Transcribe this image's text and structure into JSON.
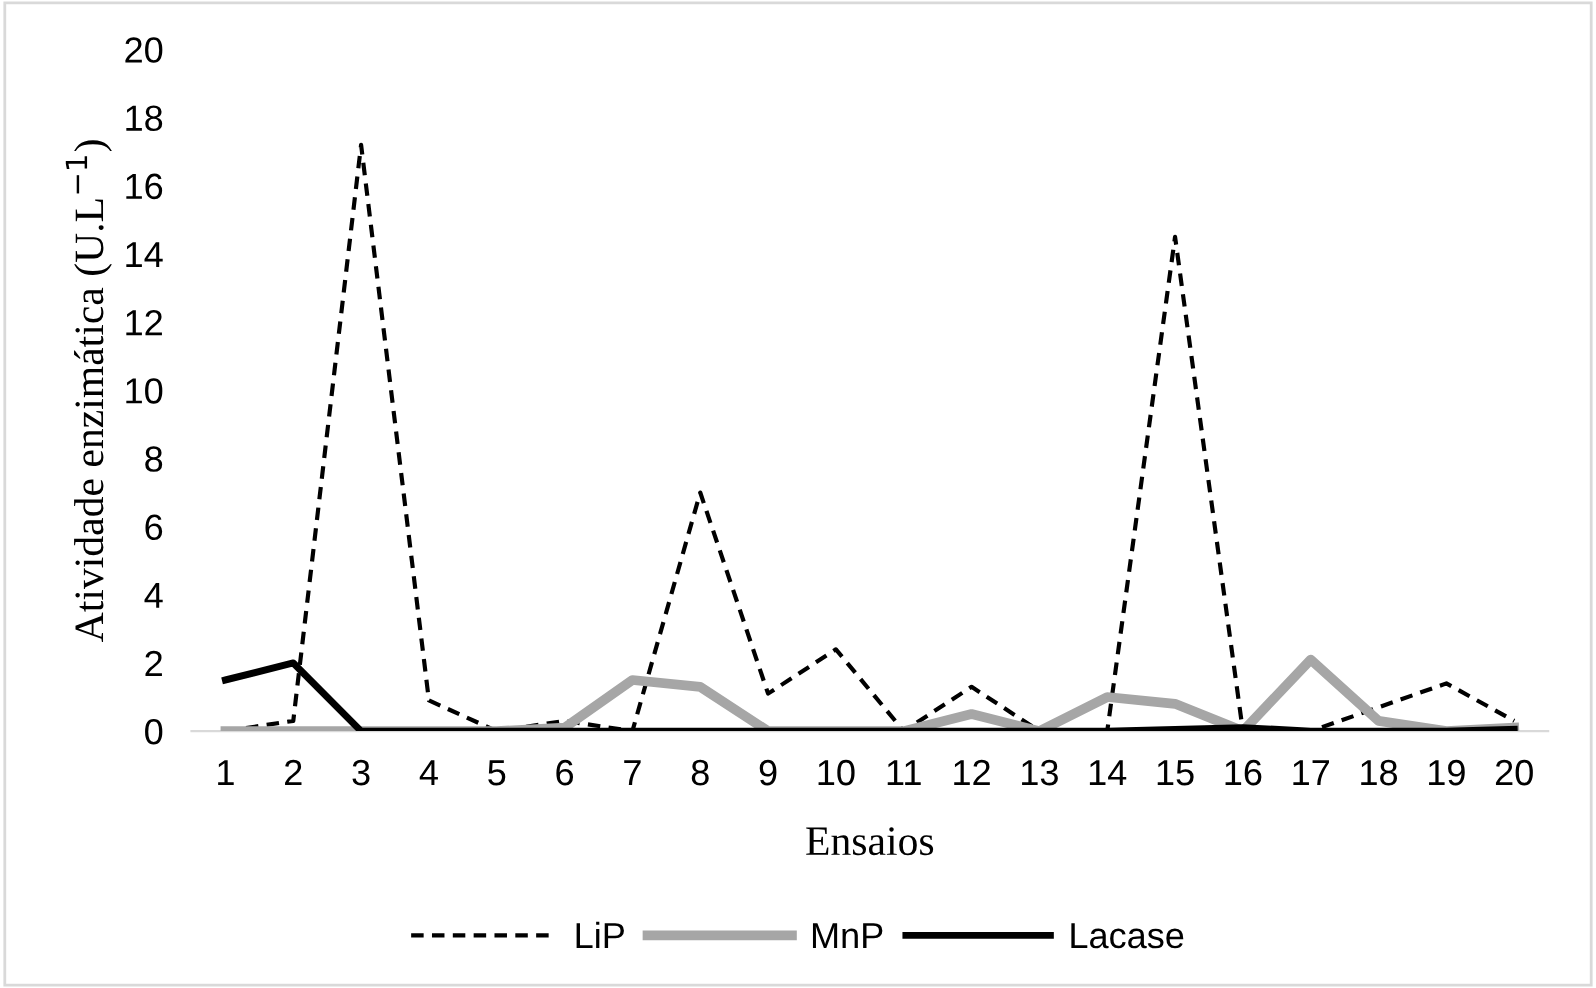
{
  "chart_data": {
    "type": "line",
    "xlabel": "Ensaios",
    "ylabel": "Atividade enzimática (U.L$^{−1}$)",
    "categories": [
      "1",
      "2",
      "3",
      "4",
      "5",
      "6",
      "7",
      "8",
      "9",
      "10",
      "11",
      "12",
      "13",
      "14",
      "15",
      "16",
      "17",
      "18",
      "19",
      "20"
    ],
    "ylim": [
      0,
      20
    ],
    "yticks": [
      0,
      2,
      4,
      6,
      8,
      10,
      12,
      14,
      16,
      18,
      20
    ],
    "grid": false,
    "legend": "bottom",
    "marker": "none",
    "series": [
      {
        "name": "LiP",
        "color": "#000000",
        "line_style": "dashed",
        "values": [
          0,
          0.3,
          17.2,
          0.9,
          0,
          0.3,
          0,
          7.0,
          1.1,
          2.4,
          0,
          1.3,
          0,
          0,
          14.5,
          0,
          0,
          0.7,
          1.4,
          0.3
        ]
      },
      {
        "name": "MnP",
        "color": "#a6a6a6",
        "line_style": "solid",
        "values": [
          0,
          0,
          0,
          0,
          0,
          0.1,
          1.5,
          1.3,
          0,
          0,
          0,
          0.5,
          0,
          1.0,
          0.8,
          0,
          2.1,
          0.3,
          0,
          0.1
        ]
      },
      {
        "name": "Lacase",
        "color": "#000000",
        "line_style": "solid",
        "values": [
          1.5,
          2.0,
          0,
          0,
          0,
          0,
          0,
          0,
          0,
          0,
          0,
          0,
          0,
          0,
          0.05,
          0.1,
          0,
          0,
          0,
          0.05
        ]
      }
    ]
  }
}
